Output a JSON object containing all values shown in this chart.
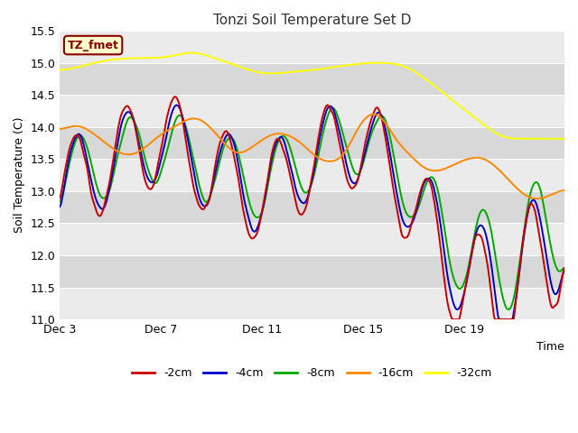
{
  "title": "Tonzi Soil Temperature Set D",
  "xlabel": "Time",
  "ylabel": "Soil Temperature (C)",
  "ylim": [
    11.0,
    15.5
  ],
  "yticks": [
    11.0,
    11.5,
    12.0,
    12.5,
    13.0,
    13.5,
    14.0,
    14.5,
    15.0,
    15.5
  ],
  "xtick_labels": [
    "Dec 3",
    "Dec 7",
    "Dec 11",
    "Dec 15",
    "Dec 19"
  ],
  "xtick_positions": [
    0,
    96,
    192,
    288,
    384
  ],
  "n_points": 480,
  "colors": {
    "-2cm": "#cc0000",
    "-4cm": "#0000cc",
    "-8cm": "#00aa00",
    "-16cm": "#ff8800",
    "-32cm": "#ffff00"
  },
  "legend_label": "TZ_fmet",
  "plot_bg_light": "#e8e8e8",
  "plot_bg_dark": "#d8d8d8",
  "title_color": "#333333",
  "band_light": "#ebebeb",
  "band_dark": "#d8d8d8"
}
